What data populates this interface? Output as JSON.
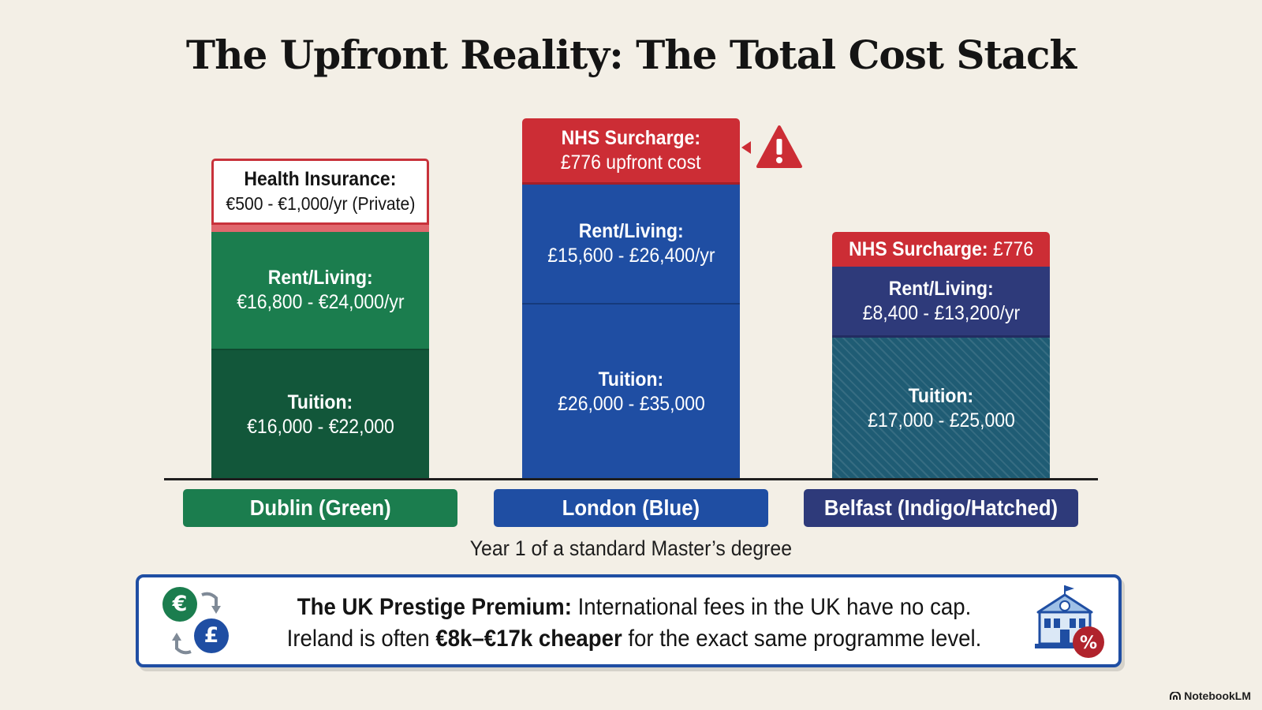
{
  "title": "The Upfront Reality: The Total Cost Stack",
  "chart_data": {
    "type": "bar",
    "stacked": true,
    "title": "The Upfront Reality: The Total Cost Stack",
    "xlabel": "Year 1 of a standard Master’s degree",
    "categories": [
      "Dublin (Green)",
      "London (Blue)",
      "Belfast (Indigo/Hatched)"
    ],
    "stacks": [
      {
        "city": "Dublin (Green)",
        "color": "#1b7d4e",
        "segments": [
          {
            "name": "Tuition",
            "label": "Tuition:",
            "value_text": "€16,000 - €22,000",
            "min": 16000,
            "max": 22000,
            "currency": "EUR",
            "color": "#12573a"
          },
          {
            "name": "Rent/Living",
            "label": "Rent/Living:",
            "value_text": "€16,800 - €24,000/yr",
            "min": 16800,
            "max": 24000,
            "currency": "EUR",
            "color": "#1b7d4e"
          },
          {
            "name": "Health Insurance",
            "label": "Health Insurance:",
            "value_text": "€500 - €1,000/yr (Private)",
            "min": 500,
            "max": 1000,
            "currency": "EUR",
            "color": "#ffffff"
          }
        ]
      },
      {
        "city": "London (Blue)",
        "color": "#1f4ea3",
        "segments": [
          {
            "name": "Tuition",
            "label": "Tuition:",
            "value_text": "£26,000 - £35,000",
            "min": 26000,
            "max": 35000,
            "currency": "GBP",
            "color": "#1f4ea3"
          },
          {
            "name": "Rent/Living",
            "label": "Rent/Living:",
            "value_text": "£15,600 - £26,400/yr",
            "min": 15600,
            "max": 26400,
            "currency": "GBP",
            "color": "#1f4ea3"
          },
          {
            "name": "NHS Surcharge",
            "label": "NHS Surcharge:",
            "value_text": "£776 upfront cost",
            "min": 776,
            "max": 776,
            "currency": "GBP",
            "color": "#cc2d35"
          }
        ]
      },
      {
        "city": "Belfast (Indigo/Hatched)",
        "color": "#2e3a7a",
        "segments": [
          {
            "name": "Tuition",
            "label": "Tuition:",
            "value_text": "£17,000 - £25,000",
            "min": 17000,
            "max": 25000,
            "currency": "GBP",
            "color": "#1f5c74",
            "pattern": "hatched"
          },
          {
            "name": "Rent/Living",
            "label": "Rent/Living:",
            "value_text": "£8,400 - £13,200/yr",
            "min": 8400,
            "max": 13200,
            "currency": "GBP",
            "color": "#2e3a7a"
          },
          {
            "name": "NHS Surcharge",
            "label": "NHS Surcharge:",
            "value_text": "£776",
            "min": 776,
            "max": 776,
            "currency": "GBP",
            "color": "#cc2d35"
          }
        ]
      }
    ],
    "annotations": [
      "warning-icon next to London NHS Surcharge"
    ]
  },
  "stacks": {
    "dublin": {
      "health_label": "Health Insurance:",
      "health_value": "€500 - €1,000/yr (Private)",
      "rent_label": "Rent/Living:",
      "rent_value": "€16,800 - €24,000/yr",
      "tuition_label": "Tuition:",
      "tuition_value": "€16,000 - €22,000"
    },
    "london": {
      "nhs_label": "NHS Surcharge:",
      "nhs_value": "£776 upfront cost",
      "rent_label": "Rent/Living:",
      "rent_value": "£15,600 - £26,400/yr",
      "tuition_label": "Tuition:",
      "tuition_value": "£26,000 - £35,000"
    },
    "belfast": {
      "nhs_label": "NHS Surcharge:",
      "nhs_value": "£776",
      "rent_label": "Rent/Living:",
      "rent_value": "£8,400 - £13,200/yr",
      "tuition_label": "Tuition:",
      "tuition_value": "£17,000 - £25,000"
    }
  },
  "cities": {
    "dublin": "Dublin (Green)",
    "london": "London (Blue)",
    "belfast": "Belfast (Indigo/Hatched)"
  },
  "caption": "Year 1 of a standard Master’s degree",
  "callout": {
    "heading": "The UK Prestige Premium:",
    "line1_rest": " International fees in the UK have no cap.",
    "line2_start": "Ireland is often ",
    "line2_bold": "€8k–€17k cheaper",
    "line2_end": " for the exact same programme level.",
    "euro_symbol": "€",
    "pound_symbol": "£",
    "percent_symbol": "%"
  },
  "footer": "NotebookLM",
  "icons": [
    "warning-icon",
    "currency-exchange-icon",
    "university-building-icon",
    "notebooklm-logo-icon"
  ],
  "colors": {
    "background": "#f3efe6",
    "dublin": "#1b7d4e",
    "dublin_dark": "#12573a",
    "london": "#1f4ea3",
    "belfast": "#2e3a7a",
    "belfast_tuition": "#1f5c74",
    "surcharge": "#cc2d35"
  }
}
